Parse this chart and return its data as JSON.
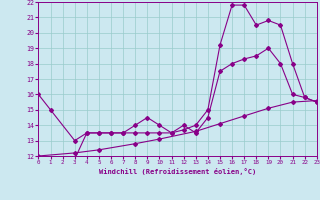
{
  "xlabel": "Windchill (Refroidissement éolien,°C)",
  "xlim": [
    0,
    23
  ],
  "ylim": [
    12,
    22
  ],
  "xticks": [
    0,
    1,
    2,
    3,
    4,
    5,
    6,
    7,
    8,
    9,
    10,
    11,
    12,
    13,
    14,
    15,
    16,
    17,
    18,
    19,
    20,
    21,
    22,
    23
  ],
  "yticks": [
    12,
    13,
    14,
    15,
    16,
    17,
    18,
    19,
    20,
    21,
    22
  ],
  "bg_color": "#cce8f0",
  "line_color": "#880088",
  "grid_color": "#99cccc",
  "line1_x": [
    0,
    1,
    3,
    4,
    5,
    6,
    7,
    8,
    9,
    10,
    11,
    12,
    13,
    14,
    15,
    16,
    17,
    18,
    19,
    20,
    21,
    22,
    23
  ],
  "line1_y": [
    16,
    15,
    13,
    13.5,
    13.5,
    13.5,
    13.5,
    14,
    14.5,
    14,
    13.5,
    14,
    13.5,
    14.5,
    17.5,
    18,
    18.3,
    18.5,
    19,
    18,
    16,
    15.8,
    15.5
  ],
  "line2_x": [
    3,
    4,
    5,
    6,
    7,
    8,
    9,
    10,
    11,
    12,
    13,
    14,
    15,
    16,
    17,
    18,
    19,
    20,
    21,
    22,
    23
  ],
  "line2_y": [
    11.8,
    13.5,
    13.5,
    13.5,
    13.5,
    13.5,
    13.5,
    13.5,
    13.5,
    13.7,
    14,
    15,
    19.2,
    21.8,
    21.8,
    20.5,
    20.8,
    20.5,
    18,
    15.8,
    15.5
  ],
  "line3_x": [
    0,
    3,
    5,
    8,
    10,
    13,
    15,
    17,
    19,
    21,
    23
  ],
  "line3_y": [
    12.0,
    12.2,
    12.4,
    12.8,
    13.1,
    13.6,
    14.1,
    14.6,
    15.1,
    15.5,
    15.6
  ]
}
